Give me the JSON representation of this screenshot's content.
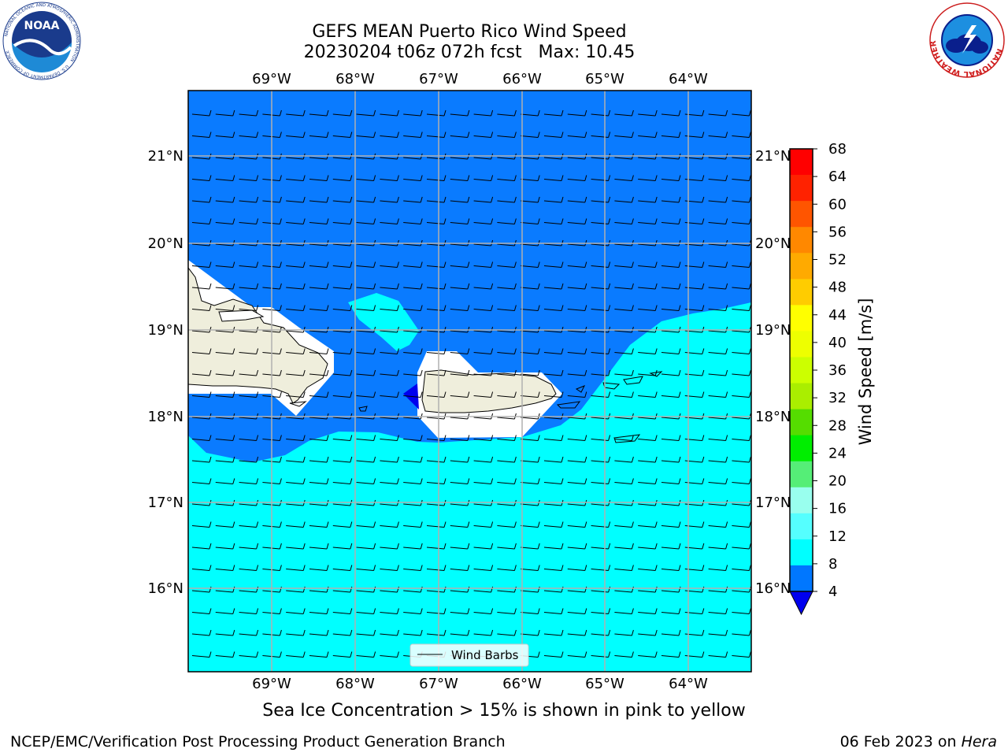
{
  "title_line1": "GEFS MEAN Puerto Rico Wind Speed",
  "title_line2": "20230204 t06z 072h fcst   Max: 10.45",
  "lon_labels": [
    "69°W",
    "68°W",
    "67°W",
    "66°W",
    "65°W",
    "64°W"
  ],
  "lat_labels": [
    "21°N",
    "20°N",
    "19°N",
    "18°N",
    "17°N",
    "16°N"
  ],
  "legend_label": "Wind Barbs",
  "colorbar": {
    "label": "Wind Speed [m/s]",
    "ticks": [
      "68",
      "64",
      "60",
      "56",
      "52",
      "48",
      "44",
      "40",
      "36",
      "32",
      "28",
      "24",
      "20",
      "16",
      "12",
      "8",
      "4"
    ],
    "colors": [
      "#ff0000",
      "#ff2200",
      "#ff5500",
      "#ff8800",
      "#ffaa00",
      "#ffcc00",
      "#ffff00",
      "#eeff00",
      "#ccff00",
      "#aaee00",
      "#55dd00",
      "#00ee00",
      "#55ee77",
      "#99ffee",
      "#55ffff",
      "#00ffff",
      "#0077ff"
    ],
    "under_color": "#0000ee"
  },
  "colors": {
    "low_wind": "#0a7bff",
    "mid_wind": "#00ffff",
    "calm": "#0000ee",
    "land": "#efeedc"
  },
  "subtitle": "Sea Ice Concentration > 15% is shown in pink to yellow",
  "footer_left": "NCEP/EMC/Verification Post Processing Product Generation Branch",
  "footer_date": "06 Feb 2023 on ",
  "footer_host": "Hera",
  "logos": {
    "noaa_text": "NOAA",
    "noaa_ring": "NATIONAL OCEANIC AND ATMOSPHERIC ADMINISTRATION",
    "noaa_ring_bottom": "U.S. DEPARTMENT OF COMMERCE",
    "nws_ring": "NATIONAL WEATHER SERVICE"
  }
}
